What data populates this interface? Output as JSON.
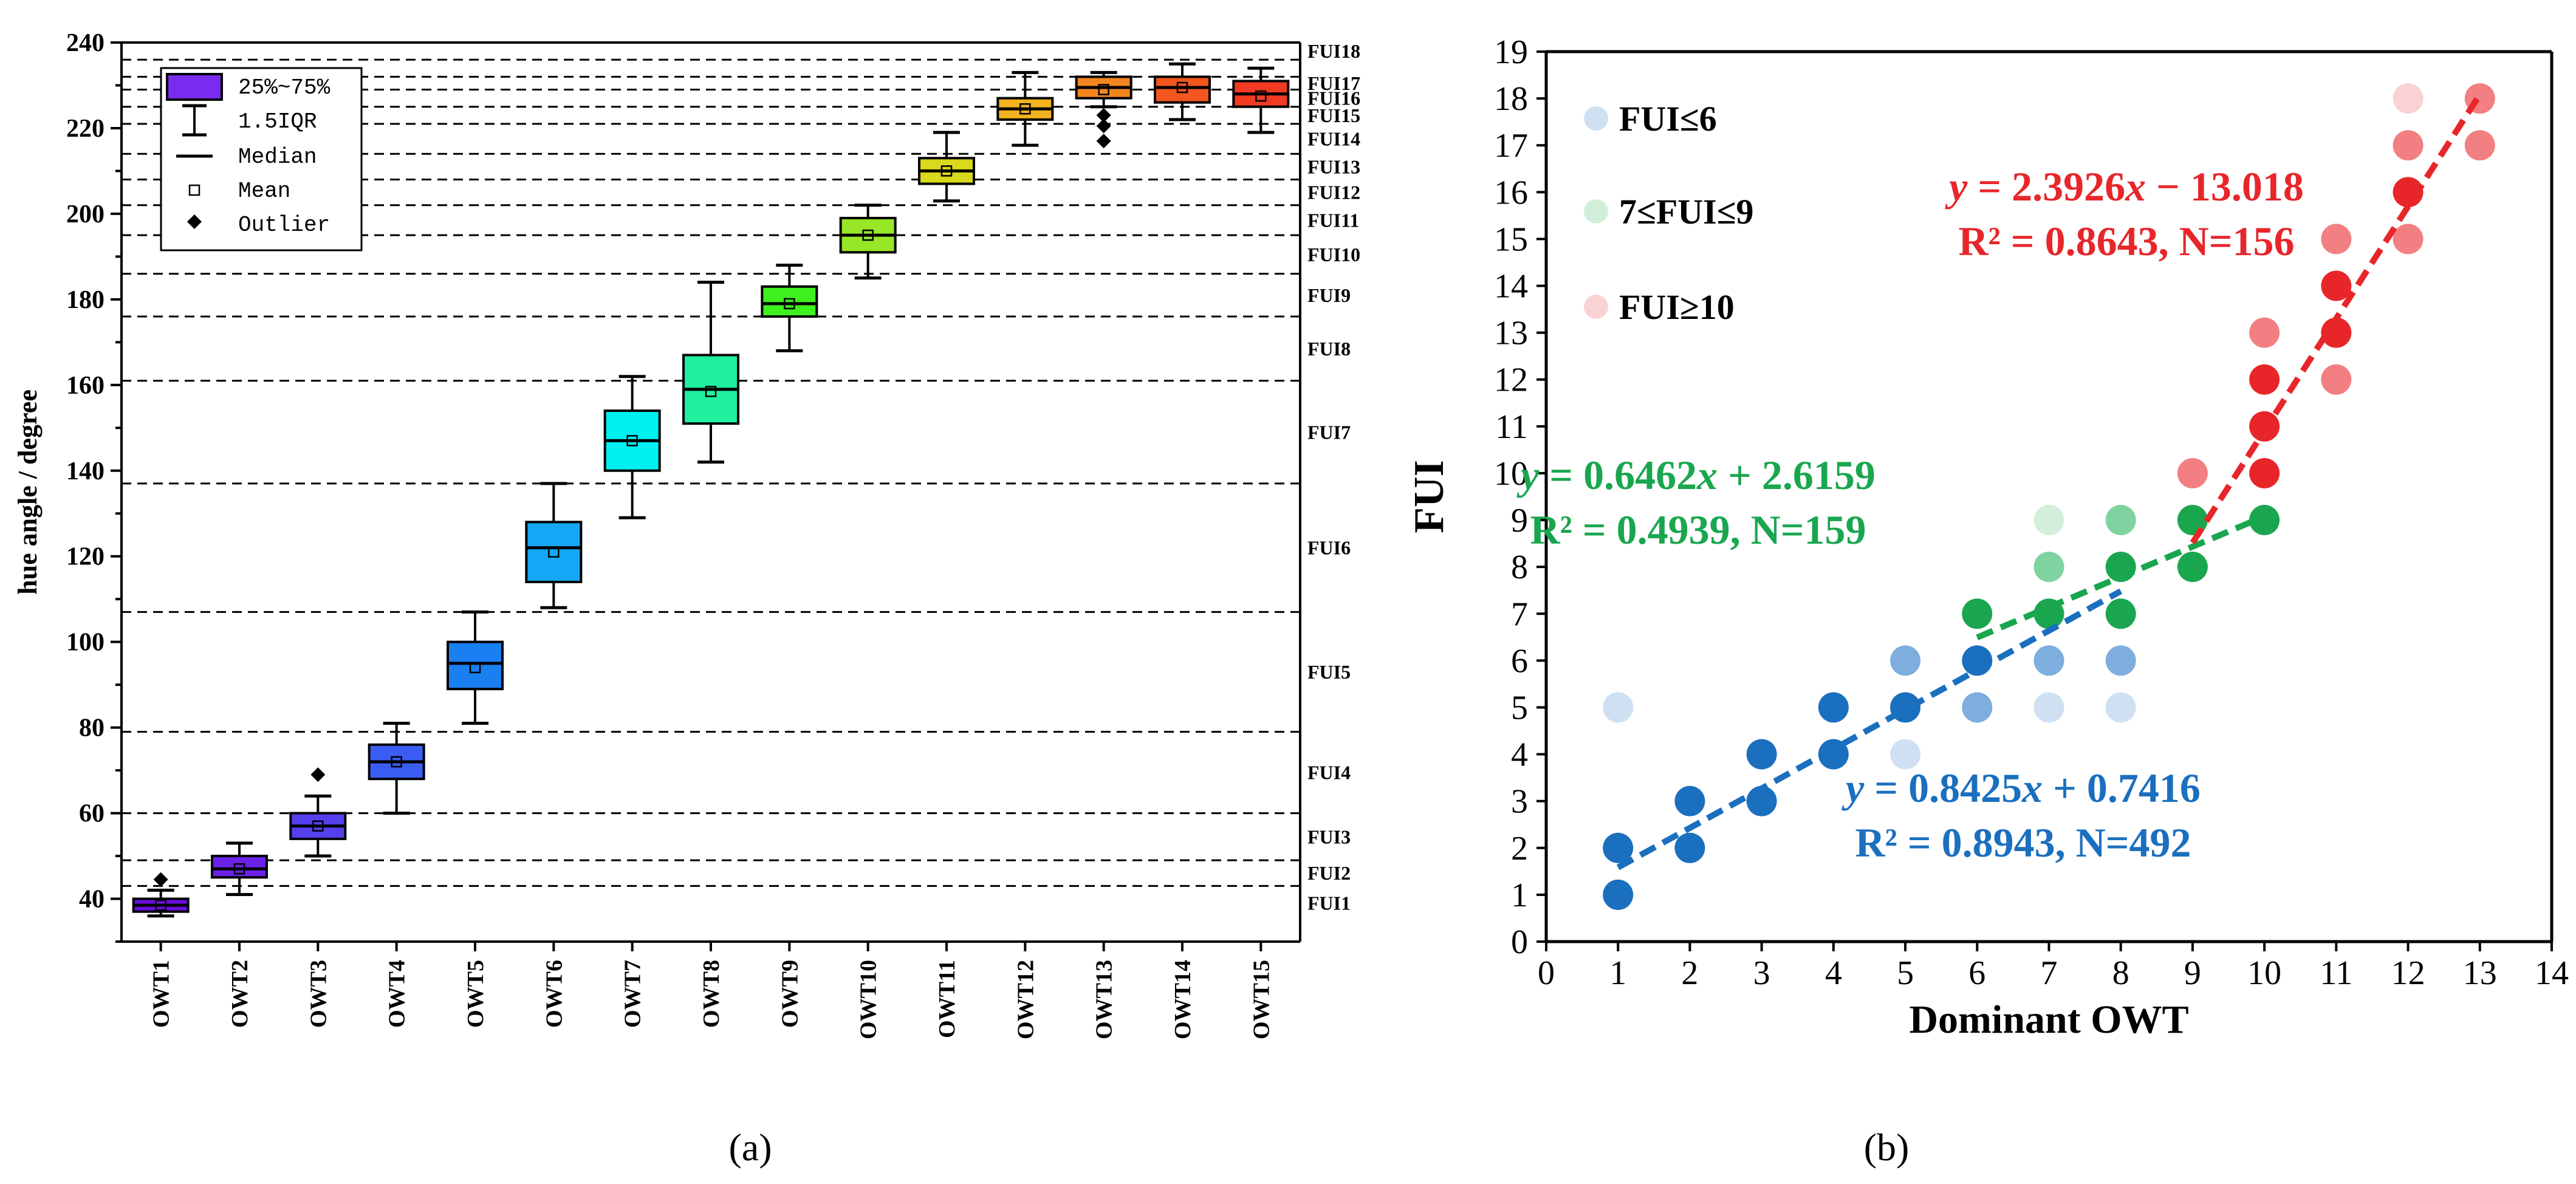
{
  "chart_data": [
    {
      "type": "boxplot",
      "panel_label": "(a)",
      "ylabel": "hue angle / degree",
      "ylim": [
        30,
        240
      ],
      "yticks": [
        40,
        60,
        80,
        100,
        120,
        140,
        160,
        180,
        200,
        220,
        240
      ],
      "categories": [
        "OWT1",
        "OWT2",
        "OWT3",
        "OWT4",
        "OWT5",
        "OWT6",
        "OWT7",
        "OWT8",
        "OWT9",
        "OWT10",
        "OWT11",
        "OWT12",
        "OWT13",
        "OWT14",
        "OWT15"
      ],
      "colors": [
        "#6a0dde",
        "#6a22e8",
        "#5540ee",
        "#3a5cf2",
        "#1a80f2",
        "#13a8f5",
        "#00f0f0",
        "#1ef0a0",
        "#3ef01e",
        "#98e628",
        "#d9d81c",
        "#f2b21e",
        "#f2861e",
        "#f2561e",
        "#f23a22"
      ],
      "boxes": [
        {
          "q1": 37,
          "q3": 40,
          "median": 38.5,
          "mean": 38.5,
          "whisker_low": 36,
          "whisker_high": 42,
          "outliers": [
            44.5
          ]
        },
        {
          "q1": 45,
          "q3": 50,
          "median": 47,
          "mean": 47,
          "whisker_low": 41,
          "whisker_high": 53,
          "outliers": []
        },
        {
          "q1": 54,
          "q3": 60,
          "median": 57,
          "mean": 57,
          "whisker_low": 50,
          "whisker_high": 64,
          "outliers": [
            69
          ]
        },
        {
          "q1": 68,
          "q3": 76,
          "median": 72,
          "mean": 72,
          "whisker_low": 60,
          "whisker_high": 81,
          "outliers": []
        },
        {
          "q1": 89,
          "q3": 100,
          "median": 95,
          "mean": 94,
          "whisker_low": 81,
          "whisker_high": 107,
          "outliers": []
        },
        {
          "q1": 114,
          "q3": 128,
          "median": 122,
          "mean": 121,
          "whisker_low": 108,
          "whisker_high": 137,
          "outliers": []
        },
        {
          "q1": 140,
          "q3": 154,
          "median": 147,
          "mean": 147,
          "whisker_low": 129,
          "whisker_high": 162,
          "outliers": []
        },
        {
          "q1": 151,
          "q3": 167,
          "median": 159,
          "mean": 158.5,
          "whisker_low": 142,
          "whisker_high": 184,
          "outliers": []
        },
        {
          "q1": 176,
          "q3": 183,
          "median": 179,
          "mean": 179,
          "whisker_low": 168,
          "whisker_high": 188,
          "outliers": []
        },
        {
          "q1": 191,
          "q3": 199,
          "median": 195,
          "mean": 195,
          "whisker_low": 185,
          "whisker_high": 202,
          "outliers": []
        },
        {
          "q1": 207,
          "q3": 213,
          "median": 210,
          "mean": 210,
          "whisker_low": 203,
          "whisker_high": 219,
          "outliers": []
        },
        {
          "q1": 222,
          "q3": 227,
          "median": 224.5,
          "mean": 224.5,
          "whisker_low": 216,
          "whisker_high": 233,
          "outliers": []
        },
        {
          "q1": 227,
          "q3": 232,
          "median": 229.5,
          "mean": 229,
          "whisker_low": 225,
          "whisker_high": 233,
          "outliers": [
            223,
            220.5,
            217
          ]
        },
        {
          "q1": 226,
          "q3": 232,
          "median": 229.5,
          "mean": 229.5,
          "whisker_low": 222,
          "whisker_high": 235,
          "outliers": []
        },
        {
          "q1": 225,
          "q3": 231,
          "median": 228,
          "mean": 227.5,
          "whisker_low": 219,
          "whisker_high": 234,
          "outliers": []
        }
      ],
      "reference_lines": [
        43,
        49,
        60,
        79,
        107,
        137,
        161,
        176,
        186,
        195,
        202,
        208,
        214,
        221,
        225,
        229,
        232,
        236
      ],
      "fui_labels": [
        {
          "text": "FUI1",
          "y": 39
        },
        {
          "text": "FUI2",
          "y": 46
        },
        {
          "text": "FUI3",
          "y": 54.5
        },
        {
          "text": "FUI4",
          "y": 69.5
        },
        {
          "text": "FUI5",
          "y": 93
        },
        {
          "text": "FUI6",
          "y": 122
        },
        {
          "text": "FUI7",
          "y": 149
        },
        {
          "text": "FUI8",
          "y": 168.5
        },
        {
          "text": "FUI9",
          "y": 181
        },
        {
          "text": "FUI10",
          "y": 190.5
        },
        {
          "text": "FUI11",
          "y": 198.5
        },
        {
          "text": "FUI12",
          "y": 205
        },
        {
          "text": "FUI13",
          "y": 211
        },
        {
          "text": "FUI14",
          "y": 217.5
        },
        {
          "text": "FUI15",
          "y": 223
        },
        {
          "text": "FUI16",
          "y": 227
        },
        {
          "text": "FUI17",
          "y": 230.5
        },
        {
          "text": "FUI18",
          "y": 238
        }
      ],
      "legend": {
        "box": "25%~75%",
        "whisker": "1.5IQR",
        "median": "Median",
        "mean": "Mean",
        "outlier": "Outlier"
      }
    },
    {
      "type": "scatter",
      "panel_label": "(b)",
      "xlabel": "Dominant OWT",
      "ylabel": "FUI",
      "xlim": [
        0,
        14
      ],
      "ylim": [
        0,
        19
      ],
      "xticks": [
        0,
        1,
        2,
        3,
        4,
        5,
        6,
        7,
        8,
        9,
        10,
        11,
        12,
        13,
        14
      ],
      "yticks": [
        0,
        1,
        2,
        3,
        4,
        5,
        6,
        7,
        8,
        9,
        10,
        11,
        12,
        13,
        14,
        15,
        16,
        17,
        18,
        19
      ],
      "legend": [
        "FUI≤6",
        "7≤FUI≤9",
        "FUI≥10"
      ],
      "series": [
        {
          "name": "FUI≤6",
          "color": "#1b6fbf",
          "light_color": "#cfe0f2",
          "mid_color": "#7eaedd",
          "points": [
            {
              "x": 1,
              "y": 1,
              "shade": "dark"
            },
            {
              "x": 1,
              "y": 2,
              "shade": "dark"
            },
            {
              "x": 1,
              "y": 5,
              "shade": "light"
            },
            {
              "x": 2,
              "y": 2,
              "shade": "dark"
            },
            {
              "x": 2,
              "y": 3,
              "shade": "dark"
            },
            {
              "x": 3,
              "y": 3,
              "shade": "dark"
            },
            {
              "x": 3,
              "y": 4,
              "shade": "dark"
            },
            {
              "x": 4,
              "y": 4,
              "shade": "dark"
            },
            {
              "x": 4,
              "y": 5,
              "shade": "dark"
            },
            {
              "x": 5,
              "y": 4,
              "shade": "light"
            },
            {
              "x": 5,
              "y": 5,
              "shade": "dark"
            },
            {
              "x": 5,
              "y": 6,
              "shade": "mid"
            },
            {
              "x": 6,
              "y": 5,
              "shade": "mid"
            },
            {
              "x": 6,
              "y": 6,
              "shade": "dark"
            },
            {
              "x": 7,
              "y": 5,
              "shade": "light"
            },
            {
              "x": 7,
              "y": 6,
              "shade": "mid"
            },
            {
              "x": 8,
              "y": 5,
              "shade": "light"
            },
            {
              "x": 8,
              "y": 6,
              "shade": "mid"
            }
          ],
          "fit": {
            "slope": 0.8425,
            "intercept": 0.7416,
            "x_range": [
              1,
              8
            ]
          },
          "equation": {
            "y_eq": "y",
            "eq_rest": " = 0.8425",
            "x_var": "x",
            "eq_tail": " + 0.7416",
            "stats": "R² = 0.8943, N=492"
          }
        },
        {
          "name": "7≤FUI≤9",
          "color": "#1aa64f",
          "light_color": "#d2efdc",
          "mid_color": "#7fd3a0",
          "points": [
            {
              "x": 6,
              "y": 7,
              "shade": "dark"
            },
            {
              "x": 7,
              "y": 7,
              "shade": "dark"
            },
            {
              "x": 7,
              "y": 8,
              "shade": "mid"
            },
            {
              "x": 7,
              "y": 9,
              "shade": "light"
            },
            {
              "x": 8,
              "y": 7,
              "shade": "dark"
            },
            {
              "x": 8,
              "y": 8,
              "shade": "dark"
            },
            {
              "x": 8,
              "y": 9,
              "shade": "mid"
            },
            {
              "x": 9,
              "y": 8,
              "shade": "dark"
            },
            {
              "x": 9,
              "y": 9,
              "shade": "dark"
            },
            {
              "x": 10,
              "y": 9,
              "shade": "dark"
            }
          ],
          "fit": {
            "slope": 0.6462,
            "intercept": 2.6159,
            "x_range": [
              6,
              10
            ]
          },
          "equation": {
            "y_eq": "y",
            "eq_rest": " = 0.6462",
            "x_var": "x",
            "eq_tail": " + 2.6159",
            "stats": "R² = 0.4939, N=159"
          }
        },
        {
          "name": "FUI≥10",
          "color": "#e8262a",
          "light_color": "#f9d2d3",
          "mid_color": "#f27f82",
          "points": [
            {
              "x": 9,
              "y": 10,
              "shade": "mid"
            },
            {
              "x": 10,
              "y": 10,
              "shade": "dark"
            },
            {
              "x": 10,
              "y": 11,
              "shade": "dark"
            },
            {
              "x": 10,
              "y": 12,
              "shade": "dark"
            },
            {
              "x": 10,
              "y": 13,
              "shade": "mid"
            },
            {
              "x": 11,
              "y": 12,
              "shade": "mid"
            },
            {
              "x": 11,
              "y": 13,
              "shade": "dark"
            },
            {
              "x": 11,
              "y": 14,
              "shade": "dark"
            },
            {
              "x": 11,
              "y": 15,
              "shade": "mid"
            },
            {
              "x": 12,
              "y": 15,
              "shade": "mid"
            },
            {
              "x": 12,
              "y": 16,
              "shade": "dark"
            },
            {
              "x": 12,
              "y": 17,
              "shade": "mid"
            },
            {
              "x": 12,
              "y": 18,
              "shade": "light"
            },
            {
              "x": 13,
              "y": 17,
              "shade": "mid"
            },
            {
              "x": 13,
              "y": 18,
              "shade": "mid"
            }
          ],
          "fit": {
            "slope": 2.3926,
            "intercept": -13.018,
            "x_range": [
              9,
              13
            ]
          },
          "equation": {
            "y_eq": "y",
            "eq_rest": " = 2.3926",
            "x_var": "x",
            "eq_tail": " − 13.018",
            "stats": "R² = 0.8643, N=156"
          }
        }
      ]
    }
  ]
}
